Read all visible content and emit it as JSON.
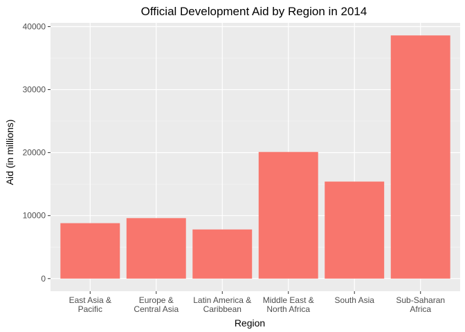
{
  "chart_data": {
    "type": "bar",
    "title": "Official Development Aid by Region in 2014",
    "xlabel": "Region",
    "ylabel": "Aid (in millions)",
    "categories": [
      [
        "East Asia &",
        "Pacific"
      ],
      [
        "Europe &",
        "Central Asia"
      ],
      [
        "Latin America &",
        "Caribbean"
      ],
      [
        "Middle East &",
        "North Africa"
      ],
      [
        "South Asia"
      ],
      [
        "Sub-Saharan",
        "Africa"
      ]
    ],
    "values": [
      8800,
      9600,
      7800,
      20100,
      15400,
      38600
    ],
    "ylim": [
      -2000,
      40600
    ],
    "yticks": [
      0,
      10000,
      20000,
      30000,
      40000
    ],
    "grid": true,
    "legend": "none",
    "colors": {
      "bar": "#f8766d",
      "panel": "#ebebeb",
      "grid_major": "#ffffff",
      "grid_minor": "#f5f5f5"
    }
  }
}
